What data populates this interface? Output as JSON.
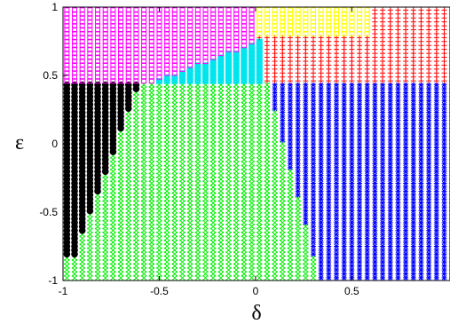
{
  "chart_data": {
    "type": "scatter",
    "title": "",
    "xlabel": "δ",
    "ylabel": "ε",
    "xlim": [
      -1,
      1
    ],
    "ylim": [
      -1,
      1
    ],
    "x_ticks": [
      "-1",
      "-0.5",
      "0",
      "0.5"
    ],
    "y_ticks": [
      "-1",
      "-0.5",
      "0",
      "0.5",
      "1"
    ],
    "x_tick_values": [
      -1,
      -0.5,
      0,
      0.5
    ],
    "y_tick_values": [
      -1,
      -0.5,
      0,
      0.5,
      1
    ],
    "grid": false,
    "legend": "none",
    "grid_step": 0.04,
    "regions": [
      {
        "marker": "square-open",
        "color": "#ff00ff",
        "rule": "y >= 0.45 and y >= 0.44 + 0.55*(x + 0.55) and x < 0"
      },
      {
        "marker": "filled-bar",
        "color": "#00e5ee",
        "rule": "y >= 0.45 and y < 0.44 + 0.55*(x + 0.55) and x < 0.06"
      },
      {
        "marker": "square-open",
        "color": "#ffff00",
        "rule": "y >= 0.8 and x >= 0 and x < 0.6"
      },
      {
        "marker": "plus",
        "color": "#ff0000",
        "rule": "y >= 0.45 and not yellow and not cyan"
      },
      {
        "marker": "circle-filled",
        "color": "#000000",
        "rule": "y < 0.45 and x < -1 + 0.07 + 0.28*(0.45 - y) clipped"
      },
      {
        "marker": "x-diamond",
        "color": "#00ee00",
        "rule": "y < 0.45 and left of blue boundary"
      },
      {
        "marker": "asterisk",
        "color": "#0000ff",
        "rule": "y < 0.45 and x > boundary(y)"
      }
    ],
    "boundary_green_blue": [
      [
        0.06,
        0.45
      ],
      [
        0.2,
        -0.3
      ],
      [
        0.26,
        -0.6
      ],
      [
        0.3,
        -0.82
      ],
      [
        0.34,
        -1.0
      ]
    ],
    "colors": {
      "magenta": "#ff00ff",
      "cyan": "#00e5ee",
      "yellow": "#ffff00",
      "red": "#ff0000",
      "black": "#000000",
      "green": "#00ee00",
      "blue": "#0000ff"
    }
  }
}
